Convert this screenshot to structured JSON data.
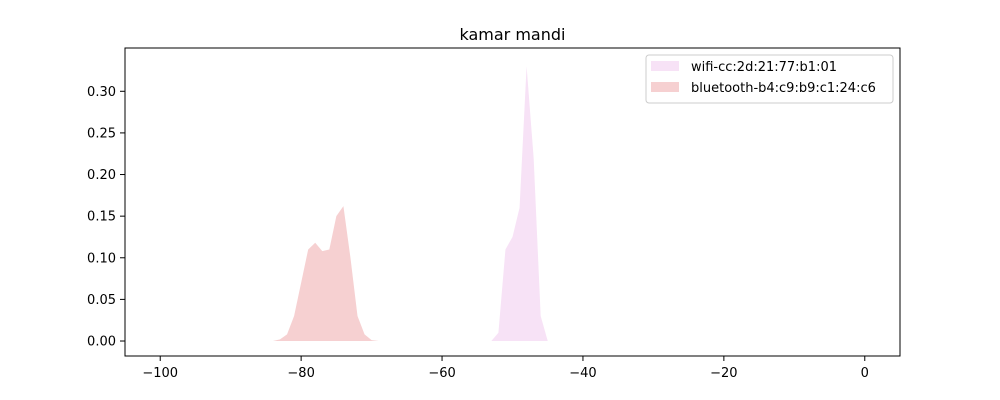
{
  "chart_data": {
    "type": "area",
    "title": "kamar mandi",
    "xlabel": "",
    "ylabel": "",
    "xlim": [
      -105,
      5
    ],
    "ylim": [
      -0.018,
      0.352
    ],
    "xticks": [
      -100,
      -80,
      -60,
      -40,
      -20,
      0
    ],
    "xtick_labels": [
      "−100",
      "−80",
      "−60",
      "−40",
      "−20",
      "0"
    ],
    "yticks": [
      0.0,
      0.05,
      0.1,
      0.15,
      0.2,
      0.25,
      0.3
    ],
    "ytick_labels": [
      "0.00",
      "0.05",
      "0.10",
      "0.15",
      "0.20",
      "0.25",
      "0.30"
    ],
    "grid": false,
    "legend_position": "upper right",
    "series": [
      {
        "name": "wifi-cc:2d:21:77:b1:01",
        "color": "#f7e2f6",
        "x": [
          -53,
          -52,
          -51,
          -50,
          -49,
          -48,
          -47,
          -46,
          -45,
          -44
        ],
        "y": [
          0.0,
          0.01,
          0.11,
          0.125,
          0.16,
          0.33,
          0.22,
          0.03,
          0.0,
          0.0
        ]
      },
      {
        "name": "bluetooth-b4:c9:b9:c1:24:c6",
        "color": "#f6d0d1",
        "x": [
          -84,
          -83,
          -82,
          -81,
          -80,
          -79,
          -78,
          -77,
          -76,
          -75,
          -74,
          -73,
          -72,
          -71,
          -70,
          -69
        ],
        "y": [
          0.0,
          0.002,
          0.008,
          0.03,
          0.07,
          0.11,
          0.118,
          0.108,
          0.11,
          0.15,
          0.162,
          0.1,
          0.03,
          0.008,
          0.001,
          0.0
        ]
      }
    ]
  }
}
